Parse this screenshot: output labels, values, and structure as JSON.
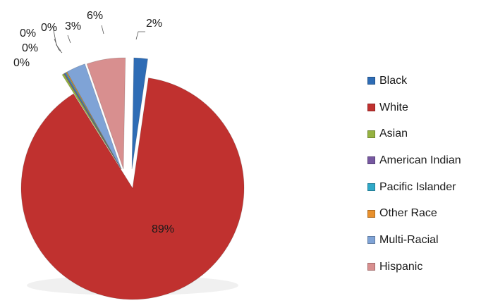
{
  "chart_data": {
    "type": "pie",
    "exploded": true,
    "start_angle_deg": 0,
    "direction": "clockwise",
    "slices": [
      {
        "name": "Black",
        "value": 2,
        "label": "2%",
        "color": "#2e6cb5"
      },
      {
        "name": "White",
        "value": 89,
        "label": "89%",
        "color": "#c0312f"
      },
      {
        "name": "Asian",
        "value": 0.3,
        "label": "0%",
        "color": "#95b240"
      },
      {
        "name": "American Indian",
        "value": 0.1,
        "label": "0%",
        "color": "#7658a0"
      },
      {
        "name": "Pacific Islander",
        "value": 0.1,
        "label": "0%",
        "color": "#2fa9c8"
      },
      {
        "name": "Other Race",
        "value": 0.1,
        "label": "0%",
        "color": "#e8902c"
      },
      {
        "name": "Multi-Racial",
        "value": 2.8,
        "label": "3%",
        "color": "#7fa3d6"
      },
      {
        "name": "Hispanic",
        "value": 5.6,
        "label": "6%",
        "color": "#d88f8f"
      }
    ],
    "legend_position": "right"
  }
}
